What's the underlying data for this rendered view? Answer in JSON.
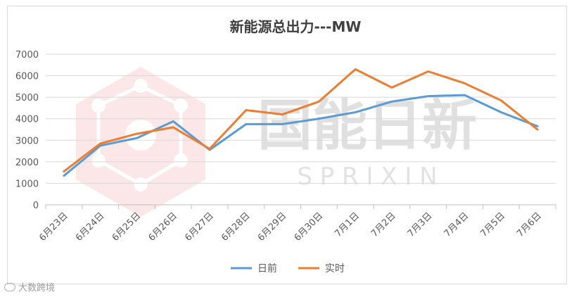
{
  "chart_data": {
    "type": "line",
    "title": "新能源总出力---MW",
    "categories": [
      "6月23日",
      "6月24日",
      "6月25日",
      "6月26日",
      "6月27日",
      "6月28日",
      "6月29日",
      "6月30日",
      "7月1日",
      "7月2日",
      "7月3日",
      "7月4日",
      "7月5日",
      "7月6日"
    ],
    "series": [
      {
        "name": "日前",
        "color": "#5b9bd5",
        "values": [
          1350,
          2750,
          3100,
          3880,
          2550,
          3750,
          3750,
          4000,
          4300,
          4800,
          5050,
          5100,
          4300,
          3650
        ]
      },
      {
        "name": "实时",
        "color": "#ed7d31",
        "values": [
          1550,
          2850,
          3300,
          3600,
          2600,
          4400,
          4200,
          4800,
          6300,
          5450,
          6200,
          5650,
          4850,
          3500
        ]
      }
    ],
    "ylim": [
      0,
      7000
    ],
    "yticks": [
      0,
      1000,
      2000,
      3000,
      4000,
      5000,
      6000,
      7000
    ],
    "xlabel": "",
    "ylabel": "",
    "grid": true,
    "legend": "bottom"
  },
  "watermark": {
    "logo_text": "国能日新",
    "sub_text": "S P R I X I N"
  },
  "footer": {
    "text": "大数跨境"
  }
}
